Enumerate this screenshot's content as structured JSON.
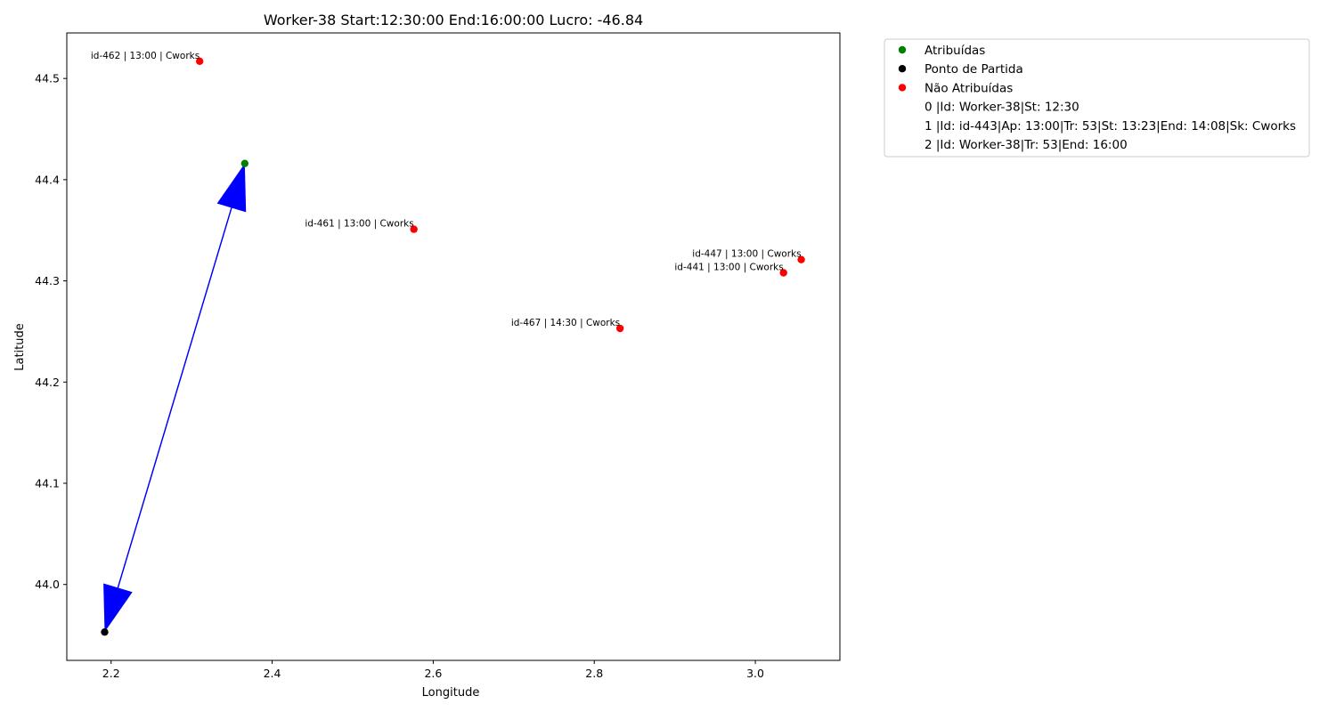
{
  "chart_data": {
    "type": "scatter",
    "title": "Worker-38 Start:12:30:00 End:16:00:00 Lucro: -46.84",
    "xlabel": "Longitude",
    "ylabel": "Latitude",
    "xlim": [
      2.145,
      3.105
    ],
    "ylim": [
      43.925,
      44.545
    ],
    "xticks": [
      2.2,
      2.4,
      2.6,
      2.8,
      3.0
    ],
    "xtick_labels": [
      "2.2",
      "2.4",
      "2.6",
      "2.8",
      "3.0"
    ],
    "yticks": [
      44.0,
      44.1,
      44.2,
      44.3,
      44.4,
      44.5
    ],
    "ytick_labels": [
      "44.0",
      "44.1",
      "44.2",
      "44.3",
      "44.4",
      "44.5"
    ],
    "grid": false,
    "legend_position": "outside-top-right",
    "colors": {
      "assigned": "#008000",
      "start": "#000000",
      "unassigned": "#ff0000",
      "route": "#0000ff"
    },
    "series": [
      {
        "name": "Atribuídas",
        "color": "#008000",
        "points": [
          {
            "x": 2.366,
            "y": 44.416
          }
        ]
      },
      {
        "name": "Ponto de Partida",
        "color": "#000000",
        "points": [
          {
            "x": 2.192,
            "y": 43.953
          }
        ]
      },
      {
        "name": "Não Atribuídas",
        "color": "#ff0000",
        "points": [
          {
            "x": 2.31,
            "y": 44.517,
            "label": "id-462 | 13:00 | Cworks"
          },
          {
            "x": 2.576,
            "y": 44.351,
            "label": "id-461 | 13:00 | Cworks"
          },
          {
            "x": 3.057,
            "y": 44.321,
            "label": "id-447 | 13:00 | Cworks"
          },
          {
            "x": 3.035,
            "y": 44.308,
            "label": "id-441 | 13:00 | Cworks"
          },
          {
            "x": 2.832,
            "y": 44.253,
            "label": "id-467 | 14:30 | Cworks"
          }
        ]
      }
    ],
    "arrows": [
      {
        "from": [
          2.192,
          43.953
        ],
        "to": [
          2.366,
          44.416
        ],
        "color": "#0000ff"
      },
      {
        "from": [
          2.366,
          44.416
        ],
        "to": [
          2.192,
          43.953
        ],
        "color": "#0000ff"
      }
    ],
    "legend_entries": [
      {
        "marker": "#008000",
        "text": "Atribuídas"
      },
      {
        "marker": "#000000",
        "text": "Ponto de Partida"
      },
      {
        "marker": "#ff0000",
        "text": "Não Atribuídas"
      },
      {
        "marker": null,
        "text": "0 |Id: Worker-38|St: 12:30"
      },
      {
        "marker": null,
        "text": "1 |Id: id-443|Ap: 13:00|Tr: 53|St: 13:23|End: 14:08|Sk: Cworks"
      },
      {
        "marker": null,
        "text": "2 |Id: Worker-38|Tr: 53|End: 16:00"
      }
    ]
  }
}
